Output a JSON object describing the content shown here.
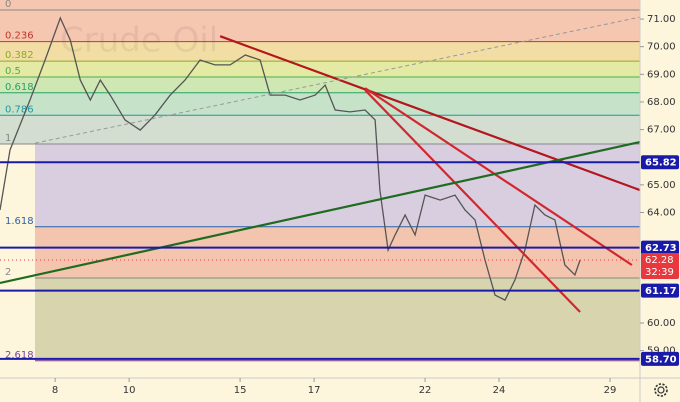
{
  "chart_data": {
    "type": "line",
    "watermark": "Crude Oil",
    "x": [
      -1.49,
      -1.22,
      -0.68,
      -0.27,
      0.14,
      0.41,
      0.68,
      0.95,
      1.22,
      1.49,
      1.89,
      2.3,
      2.7,
      3.11,
      3.51,
      3.92,
      4.32,
      4.73,
      5.14,
      5.54,
      5.81,
      6.22,
      6.62,
      7.03,
      7.3,
      7.57,
      7.97,
      8.38,
      8.65,
      8.78,
      9.0,
      9.19,
      9.46,
      9.73,
      10.0,
      10.41,
      10.81,
      11.08,
      11.35,
      11.62,
      11.89,
      12.16,
      12.43,
      12.7,
      12.97,
      13.24,
      13.51,
      13.78,
      14.05,
      14.19
    ],
    "values": [
      64.09,
      66.26,
      68.07,
      69.52,
      71.04,
      70.24,
      68.79,
      68.07,
      68.79,
      68.25,
      67.35,
      66.98,
      67.53,
      68.25,
      68.79,
      69.52,
      69.34,
      69.34,
      69.7,
      69.52,
      68.25,
      68.25,
      68.07,
      68.25,
      68.61,
      67.71,
      67.64,
      67.71,
      67.35,
      64.81,
      62.64,
      63.19,
      63.91,
      63.19,
      64.63,
      64.45,
      64.63,
      64.09,
      63.73,
      62.28,
      61.01,
      60.83,
      61.56,
      62.64,
      64.27,
      63.91,
      63.73,
      62.1,
      61.74,
      62.28
    ],
    "color": "#555555",
    "xlim": [
      -1.49,
      15.81
    ],
    "ylim": [
      58.01,
      71.69
    ],
    "xticks": [
      {
        "value": 0,
        "label": "8"
      },
      {
        "value": 2,
        "label": "10"
      },
      {
        "value": 5,
        "label": "15"
      },
      {
        "value": 7,
        "label": "17"
      },
      {
        "value": 10,
        "label": "22"
      },
      {
        "value": 12,
        "label": "24"
      },
      {
        "value": 15,
        "label": "29"
      }
    ],
    "yticks": [
      {
        "value": 71,
        "label": "71.00"
      },
      {
        "value": 70,
        "label": "70.00"
      },
      {
        "value": 69,
        "label": "69.00"
      },
      {
        "value": 68,
        "label": "68.00"
      },
      {
        "value": 67,
        "label": "67.00"
      },
      {
        "value": 65,
        "label": "65.00"
      },
      {
        "value": 64,
        "label": "64.00"
      },
      {
        "value": 60,
        "label": "60.00"
      },
      {
        "value": 59,
        "label": "59.00"
      }
    ],
    "fib": {
      "high": 71.33,
      "low": 66.48,
      "levels": [
        0,
        0.236,
        0.382,
        0.5,
        0.618,
        0.786,
        1,
        1.618,
        2,
        2.618
      ],
      "colors": [
        "#888888",
        "#c0392b",
        "#8bab2a",
        "#4caf50",
        "#26a269",
        "#2196a3",
        "#888888",
        "#2962a8",
        "#888888",
        "#7b3fa0"
      ],
      "band_colors": [
        "#f5c6b0",
        "#f2dea5",
        "#e4eaa3",
        "#cfe8b3",
        "#c6e3c9",
        "#d3ddd0",
        "#d8cee0",
        "#f4c5ae",
        "#d8d4ad"
      ]
    },
    "levels": [
      65.82,
      62.73,
      61.17,
      {
        "value": 58.7,
        "label": "58.70"
      }
    ],
    "level_color": "#1a1aa8",
    "last_price": 62.28,
    "countdown": "32:39",
    "price_color": "#e8383d",
    "trendlines": [
      {
        "color": "#b3161c",
        "x": [
          4.46,
          15.81
        ],
        "y": [
          70.38,
          64.81
        ]
      },
      {
        "color": "#d0282e",
        "x": [
          8.38,
          15.59
        ],
        "y": [
          68.5,
          62.1
        ]
      },
      {
        "color": "#d0282e",
        "x": [
          8.38,
          14.19
        ],
        "y": [
          68.43,
          60.4
        ]
      },
      {
        "color": "#1f6b1f",
        "x": [
          -1.49,
          15.81
        ],
        "y": [
          61.45,
          66.55
        ]
      },
      {
        "color": "#999999",
        "x": [
          -0.54,
          15.81
        ],
        "y": [
          66.51,
          71.07
        ],
        "dashed": true
      }
    ]
  }
}
